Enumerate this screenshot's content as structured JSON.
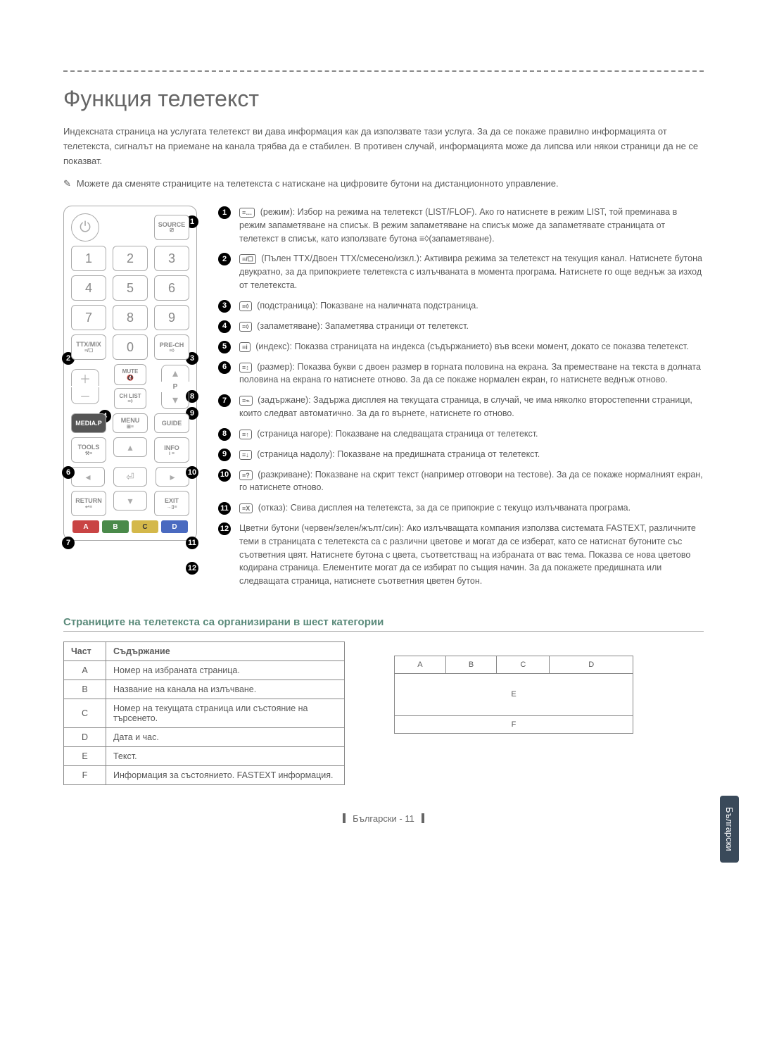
{
  "title": "Функция телетекст",
  "intro": "Индексната страница на услугата телетекст ви дава информация как да използвате тази услуга. За да се покаже правилно информацията от телетекста, сигналът на приемане на канала трябва да е стабилен. В противен случай, информацията може да липсва или някои страници да не се показват.",
  "note_icon": "✎",
  "note": "Можете да сменяте страниците на телетекста с натискане на цифровите бутони на дистанционното управление.",
  "remote": {
    "power": "⏻",
    "source": "SOURCE",
    "nums": [
      "1",
      "2",
      "3",
      "4",
      "5",
      "6",
      "7",
      "8",
      "9",
      "0"
    ],
    "ttx": "TTX/MIX",
    "prech": "PRE-CH",
    "mute": "MUTE",
    "chlist": "CH LIST",
    "media": "MEDIA.P",
    "menu": "MENU",
    "guide": "GUIDE",
    "tools": "TOOLS",
    "info": "INFO",
    "return": "RETURN",
    "exit": "EXIT",
    "color_a": "A",
    "color_b": "B",
    "color_c": "C",
    "color_d": "D",
    "color_a_bg": "#c94444",
    "color_b_bg": "#4a8a4a",
    "color_c_bg": "#d4b84a",
    "color_d_bg": "#4a6ac0",
    "p_label": "P",
    "arrow_up": "▴",
    "arrow_down": "▾",
    "arrow_left": "◂",
    "arrow_right": "▸",
    "enter": "⏎",
    "plus": "＋",
    "minus": "－"
  },
  "descriptions": [
    {
      "n": "1",
      "icon": "≡…",
      "text": "(режим): Избор на режима на телетекст (LIST/FLOF). Ако го натиснете в режим LIST, той преминава в режим запаметяване на списък. В режим запаметяване на списък може да запаметявате страницата от телетекст в списък, като използвате бутона ≡◊(запаметяване)."
    },
    {
      "n": "2",
      "icon": "≡/☐",
      "text": "(Пълен TTX/Двоен TTX/смесено/изкл.): Активира режима за телетекст на текущия канал. Натиснете бутона двукратно, за да припокриете телетекста с излъчваната в момента програма. Натиснете го още веднъж за изход от телетекста."
    },
    {
      "n": "3",
      "icon": "≡◊",
      "text": "(подстраница): Показване на наличната подстраница."
    },
    {
      "n": "4",
      "icon": "≡◊",
      "text": "(запаметяване): Запаметява страници от телетекст."
    },
    {
      "n": "5",
      "icon": "≡i",
      "text": "(индекс): Показва страницата на индекса (съдържанието) във всеки момент, докато се показва телетекст."
    },
    {
      "n": "6",
      "icon": "≡↕",
      "text": "(размер): Показва букви с двоен размер в горната половина на екрана. За преместване на текста в долната половина на екрана го натиснете отново. За да се покаже нормален екран, го натиснете веднъж отново."
    },
    {
      "n": "7",
      "icon": "≡⌁",
      "text": "(задържане): Задържа дисплея на текущата страница, в случай, че има няколко второстепенни страници, които следват автоматично. За да го върнете, натиснете го отново."
    },
    {
      "n": "8",
      "icon": "≡↑",
      "text": "(страница нагоре): Показване на следващата страница от телетекст."
    },
    {
      "n": "9",
      "icon": "≡↓",
      "text": "(страница надолу): Показване на предишната страница от телетекст."
    },
    {
      "n": "10",
      "icon": "≡?",
      "text": "(разкриване): Показване на скрит текст (например отговори на тестове). За да се покаже нормалният екран, го натиснете отново."
    },
    {
      "n": "11",
      "icon": "≡X",
      "text": "(отказ): Свива дисплея на телетекста, за да се припокрие с текущо излъчваната програма."
    },
    {
      "n": "12",
      "icon": "",
      "text": "Цветни бутони (червен/зелен/жълт/син): Ако излъчващата компания използва системата FASTEXT, различните теми в страницата с телетекста са с различни цветове и могат да се изберат, като се натиснат бутоните със съответния цвят. Натиснете бутона с цвета, съответстващ на избраната от вас тема. Показва се нова цветово кодирана страница. Елементите могат да се избират по същия начин. За да покажете предишната или следващата страница, натиснете съответния цветен бутон."
    }
  ],
  "categories_heading": "Страниците на телетекста са организирани в шест категории",
  "cat_table": {
    "headers": [
      "Част",
      "Съдържание"
    ],
    "rows": [
      [
        "A",
        "Номер на избраната страница."
      ],
      [
        "B",
        "Название на канала на излъчване."
      ],
      [
        "C",
        "Номер на текущата страница или състояние на търсенето."
      ],
      [
        "D",
        "Дата и час."
      ],
      [
        "E",
        "Текст."
      ],
      [
        "F",
        "Информация за състоянието. FASTEXT информация."
      ]
    ]
  },
  "layout": {
    "a": "A",
    "b": "B",
    "c": "C",
    "d": "D",
    "e": "E",
    "f": "F"
  },
  "side_tab": "Български",
  "footer": "Български - 11"
}
